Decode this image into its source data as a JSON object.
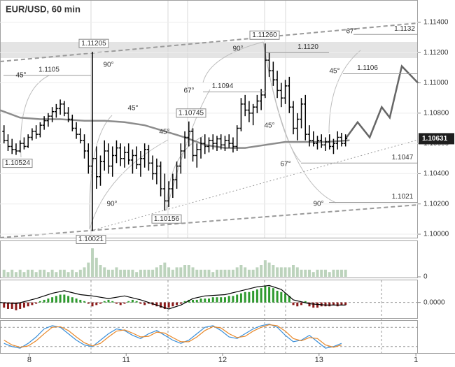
{
  "chart_data": [
    {
      "type": "ohlc",
      "title": "EUR/USD, 60 min",
      "color": "#000000",
      "grid": true,
      "xlim": [
        -1,
        103
      ],
      "ylim": [
        1.09977,
        1.11543
      ],
      "xticks": [
        {
          "value": 6.3,
          "label": "8"
        },
        {
          "value": 30.4,
          "label": "11"
        },
        {
          "value": 54.4,
          "label": "12"
        },
        {
          "value": 78.4,
          "label": "13"
        },
        {
          "value": 102.5,
          "label": "1"
        }
      ],
      "yticks": [
        {
          "value": 1.114,
          "label": "1.11400"
        },
        {
          "value": 1.112,
          "label": "1.11200"
        },
        {
          "value": 1.11,
          "label": "1.11000"
        },
        {
          "value": 1.108,
          "label": "1.10800"
        },
        {
          "value": 1.106,
          "label": "1.10600"
        },
        {
          "value": 1.104,
          "label": "1.10400"
        },
        {
          "value": 1.102,
          "label": "1.10200"
        },
        {
          "value": 1.1,
          "label": "1.10000"
        }
      ],
      "bars": [
        [
          1.1068,
          1.1072,
          1.106,
          1.1062
        ],
        [
          1.1062,
          1.1066,
          1.1055,
          1.1058
        ],
        [
          1.1058,
          1.1063,
          1.1053,
          1.1056
        ],
        [
          1.1056,
          1.106,
          1.10524,
          1.1055
        ],
        [
          1.1055,
          1.1062,
          1.1054,
          1.106
        ],
        [
          1.106,
          1.1064,
          1.1056,
          1.1058
        ],
        [
          1.1058,
          1.1066,
          1.1057,
          1.1064
        ],
        [
          1.1064,
          1.107,
          1.1062,
          1.1068
        ],
        [
          1.1068,
          1.1072,
          1.1063,
          1.1066
        ],
        [
          1.1066,
          1.1074,
          1.1064,
          1.1072
        ],
        [
          1.1072,
          1.1078,
          1.1069,
          1.1075
        ],
        [
          1.1075,
          1.108,
          1.1071,
          1.1078
        ],
        [
          1.1078,
          1.1084,
          1.1074,
          1.1081
        ],
        [
          1.1081,
          1.1086,
          1.1077,
          1.1083
        ],
        [
          1.1083,
          1.1089,
          1.1079,
          1.1086
        ],
        [
          1.1086,
          1.1088,
          1.1078,
          1.108
        ],
        [
          1.108,
          1.1084,
          1.1074,
          1.1076
        ],
        [
          1.1076,
          1.1079,
          1.1068,
          1.107
        ],
        [
          1.107,
          1.1074,
          1.1063,
          1.1066
        ],
        [
          1.1066,
          1.107,
          1.106,
          1.1062
        ],
        [
          1.1062,
          1.1066,
          1.105,
          1.1055
        ],
        [
          1.1055,
          1.106,
          1.104,
          1.1045
        ],
        [
          1.1045,
          1.11205,
          1.10021,
          1.105
        ],
        [
          1.105,
          1.1058,
          1.103,
          1.1038
        ],
        [
          1.1038,
          1.1052,
          1.1032,
          1.1048
        ],
        [
          1.1048,
          1.1062,
          1.1042,
          1.1055
        ],
        [
          1.1055,
          1.106,
          1.104,
          1.1045
        ],
        [
          1.1045,
          1.1058,
          1.1038,
          1.1052
        ],
        [
          1.1052,
          1.1062,
          1.1047,
          1.1057
        ],
        [
          1.1057,
          1.106,
          1.1045,
          1.105
        ],
        [
          1.105,
          1.1058,
          1.1044,
          1.1054
        ],
        [
          1.1054,
          1.106,
          1.1046,
          1.1049
        ],
        [
          1.1049,
          1.1056,
          1.104,
          1.1052
        ],
        [
          1.1052,
          1.1058,
          1.1043,
          1.1046
        ],
        [
          1.1046,
          1.1055,
          1.1038,
          1.105
        ],
        [
          1.105,
          1.106,
          1.1044,
          1.1056
        ],
        [
          1.1056,
          1.1059,
          1.1042,
          1.1047
        ],
        [
          1.1047,
          1.1052,
          1.1036,
          1.104
        ],
        [
          1.104,
          1.105,
          1.1033,
          1.1045
        ],
        [
          1.1045,
          1.1048,
          1.1025,
          1.103
        ],
        [
          1.103,
          1.104,
          1.10156,
          1.1022
        ],
        [
          1.1022,
          1.1035,
          1.1018,
          1.103
        ],
        [
          1.103,
          1.104,
          1.1024,
          1.1036
        ],
        [
          1.1036,
          1.1048,
          1.103,
          1.1045
        ],
        [
          1.1045,
          1.106,
          1.104,
          1.1055
        ],
        [
          1.1055,
          1.1068,
          1.105,
          1.1064
        ],
        [
          1.1064,
          1.10745,
          1.1058,
          1.1068
        ],
        [
          1.1068,
          1.107,
          1.1048,
          1.1052
        ],
        [
          1.1052,
          1.106,
          1.1044,
          1.1056
        ],
        [
          1.1056,
          1.1064,
          1.105,
          1.106
        ],
        [
          1.106,
          1.1066,
          1.1053,
          1.1058
        ],
        [
          1.1058,
          1.1064,
          1.1054,
          1.1062
        ],
        [
          1.1062,
          1.1066,
          1.1056,
          1.106
        ],
        [
          1.106,
          1.1065,
          1.1055,
          1.1063
        ],
        [
          1.1063,
          1.1066,
          1.1056,
          1.1059
        ],
        [
          1.1059,
          1.1065,
          1.1055,
          1.1062
        ],
        [
          1.1062,
          1.1066,
          1.1057,
          1.106
        ],
        [
          1.106,
          1.1064,
          1.1054,
          1.1058
        ],
        [
          1.1058,
          1.1072,
          1.1055,
          1.107
        ],
        [
          1.107,
          1.109,
          1.1068,
          1.1086
        ],
        [
          1.1086,
          1.1092,
          1.1078,
          1.1082
        ],
        [
          1.1082,
          1.1088,
          1.1074,
          1.108
        ],
        [
          1.108,
          1.1086,
          1.1072,
          1.1084
        ],
        [
          1.1084,
          1.1092,
          1.108,
          1.1088
        ],
        [
          1.1088,
          1.1096,
          1.1082,
          1.1092
        ],
        [
          1.1092,
          1.1126,
          1.109,
          1.1115
        ],
        [
          1.1115,
          1.112,
          1.1104,
          1.1108
        ],
        [
          1.1108,
          1.1114,
          1.1098,
          1.1102
        ],
        [
          1.1102,
          1.1108,
          1.109,
          1.1095
        ],
        [
          1.1095,
          1.11,
          1.1084,
          1.109
        ],
        [
          1.109,
          1.1102,
          1.1086,
          1.1098
        ],
        [
          1.1098,
          1.1104,
          1.108,
          1.1084
        ],
        [
          1.1084,
          1.1088,
          1.1066,
          1.107
        ],
        [
          1.107,
          1.108,
          1.1062,
          1.1076
        ],
        [
          1.1076,
          1.109,
          1.107,
          1.1086
        ],
        [
          1.1086,
          1.1092,
          1.1062,
          1.1066
        ],
        [
          1.1066,
          1.1072,
          1.1058,
          1.1062
        ],
        [
          1.1062,
          1.1068,
          1.1058,
          1.106
        ],
        [
          1.106,
          1.1065,
          1.1056,
          1.1062
        ],
        [
          1.1062,
          1.1066,
          1.1057,
          1.1059
        ],
        [
          1.1059,
          1.1064,
          1.1055,
          1.1061
        ],
        [
          1.1061,
          1.1066,
          1.1056,
          1.1058
        ],
        [
          1.1058,
          1.1063,
          1.1053,
          1.106
        ],
        [
          1.106,
          1.1068,
          1.1056,
          1.1064
        ],
        [
          1.1064,
          1.1067,
          1.1058,
          1.106
        ],
        [
          1.106,
          1.1066,
          1.1058,
          1.10631
        ]
      ],
      "series": [
        {
          "color": "#8c8c8c",
          "x": [
            -1,
            4,
            9,
            14,
            20,
            25,
            30,
            35,
            40,
            45,
            50,
            55,
            60,
            65,
            70,
            75,
            80,
            86
          ],
          "values": [
            1.1082,
            1.1077,
            1.1076,
            1.1076,
            1.1075,
            1.1075,
            1.1074,
            1.1072,
            1.1068,
            1.1064,
            1.1059,
            1.1057,
            1.1057,
            1.1059,
            1.1061,
            1.1061,
            1.1061,
            1.1062
          ]
        },
        {
          "color": "#666666",
          "x": [
            85,
            88,
            91,
            94,
            96,
            99,
            103
          ],
          "values": [
            1.10631,
            1.1074,
            1.1064,
            1.1084,
            1.1077,
            1.1111,
            1.11
          ]
        }
      ],
      "last_price": 1.10631,
      "level_labels": [
        1.1132,
        {
          "value": 1.112,
          "label": "1.1120"
        },
        1.1106,
        1.1094,
        1.1105,
        1.1047,
        1.1021
      ],
      "price_boxes": [
        1.11205,
        {
          "value": 1.1126,
          "label": "1.11260"
        },
        1.10745,
        1.10524,
        1.10156,
        1.10021
      ],
      "angle_labels": [
        "45°",
        "90°",
        "45°",
        "45°",
        "90°",
        "67°",
        "90°",
        "67°",
        "45°",
        "45°",
        "67°",
        "90°"
      ]
    },
    {
      "type": "volume",
      "xlim": [
        -1,
        103
      ],
      "ylim": [
        0,
        15
      ],
      "yticks": [
        0
      ],
      "color": "#bcd3bc",
      "values": [
        3,
        2,
        3,
        2,
        3,
        2,
        3,
        3,
        2,
        3,
        3,
        2,
        3,
        2,
        3,
        3,
        2,
        3,
        2,
        3,
        4,
        6,
        12,
        8,
        5,
        4,
        3,
        3,
        4,
        3,
        3,
        3,
        3,
        2,
        3,
        3,
        3,
        3,
        4,
        5,
        6,
        4,
        3,
        4,
        4,
        5,
        5,
        4,
        3,
        3,
        3,
        3,
        2,
        3,
        3,
        3,
        3,
        3,
        4,
        5,
        4,
        3,
        3,
        4,
        5,
        7,
        6,
        5,
        4,
        4,
        4,
        4,
        5,
        4,
        3,
        3,
        3,
        2,
        3,
        3,
        3,
        2,
        3,
        3,
        3,
        3
      ]
    },
    {
      "type": "macd",
      "xlim": [
        -1,
        103
      ],
      "ylim": [
        -12,
        17
      ],
      "yticks": [
        {
          "value": 0,
          "label": "0.0000"
        }
      ],
      "up_color": "#2e9a2e",
      "down_color": "#8b1a1a",
      "values": [
        -4,
        -5,
        -5,
        -6,
        -5,
        -4,
        -3,
        -2,
        -1,
        1,
        2,
        3,
        4,
        5,
        6,
        6,
        5,
        4,
        3,
        2,
        1,
        -1,
        -3,
        -2,
        -1,
        1,
        2,
        1,
        -1,
        -2,
        -1,
        1,
        2,
        1,
        -1,
        -2,
        -1,
        -2,
        -3,
        -4,
        -5,
        -4,
        -3,
        -2,
        -1,
        1,
        2,
        2,
        2,
        3,
        3,
        3,
        4,
        4,
        4,
        4,
        5,
        5,
        6,
        7,
        8,
        8,
        9,
        10,
        11,
        13,
        12,
        11,
        9,
        8,
        7,
        5,
        -2,
        -3,
        -2,
        1,
        -3,
        -4,
        -4,
        -3,
        -3,
        -3,
        -2,
        -3,
        -2,
        -2
      ],
      "series": [
        {
          "color": "#000000",
          "x": [
            -1,
            3,
            8,
            12,
            15,
            19,
            22,
            26,
            30,
            34,
            38,
            41,
            44,
            47,
            50,
            55,
            59,
            63,
            66,
            69,
            72,
            76,
            80,
            85
          ],
          "values": [
            0,
            -1,
            3,
            7,
            9,
            6,
            5,
            3,
            5,
            2,
            -2,
            -5,
            -2,
            3,
            5,
            6,
            9,
            12,
            13,
            10,
            2,
            -1,
            -2,
            -2
          ]
        }
      ]
    },
    {
      "type": "oscillator",
      "xlim": [
        -1,
        103
      ],
      "ylim": [
        0,
        100
      ],
      "series": [
        {
          "color": "#3a8fd9",
          "x": [
            0,
            2,
            4,
            6,
            8,
            10,
            12,
            14,
            16,
            18,
            20,
            22,
            24,
            26,
            28,
            30,
            32,
            34,
            36,
            38,
            40,
            42,
            44,
            46,
            48,
            50,
            52,
            54,
            56,
            58,
            60,
            62,
            64,
            66,
            68,
            70,
            72,
            74,
            76,
            78,
            80,
            82,
            84
          ],
          "values": [
            30,
            20,
            15,
            30,
            50,
            75,
            85,
            80,
            60,
            40,
            25,
            20,
            40,
            60,
            75,
            70,
            55,
            45,
            60,
            70,
            55,
            40,
            30,
            40,
            60,
            80,
            85,
            70,
            50,
            45,
            60,
            75,
            85,
            90,
            80,
            55,
            35,
            40,
            55,
            35,
            15,
            20,
            30
          ]
        },
        {
          "color": "#e8882a",
          "x": [
            0,
            2,
            4,
            6,
            8,
            10,
            12,
            14,
            16,
            18,
            20,
            22,
            24,
            26,
            28,
            30,
            32,
            34,
            36,
            38,
            40,
            42,
            44,
            46,
            48,
            50,
            52,
            54,
            56,
            58,
            60,
            62,
            64,
            66,
            68,
            70,
            72,
            74,
            76,
            78,
            80,
            82,
            84
          ],
          "values": [
            40,
            25,
            18,
            22,
            38,
            60,
            80,
            82,
            70,
            50,
            32,
            22,
            30,
            50,
            68,
            72,
            62,
            50,
            52,
            65,
            62,
            48,
            35,
            35,
            50,
            70,
            82,
            78,
            60,
            48,
            52,
            68,
            80,
            88,
            85,
            68,
            45,
            38,
            48,
            45,
            25,
            18,
            25
          ]
        }
      ]
    }
  ]
}
